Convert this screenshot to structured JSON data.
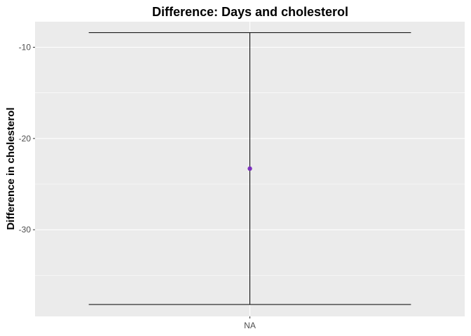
{
  "chart_data": {
    "type": "errorbar",
    "title": "Difference: Days and cholesterol",
    "xlabel": "",
    "ylabel": "Difference in cholesterol",
    "categories": [
      "NA"
    ],
    "points": [
      {
        "x": "NA",
        "y": -23.3,
        "ymin": -38.2,
        "ymax": -8.4
      }
    ],
    "ylim": [
      -39.5,
      -7.2
    ],
    "yticks": [
      -10,
      -20,
      -30
    ],
    "grid": true,
    "point_color": "#7B2FBE",
    "bar_color": "#000000",
    "panel_color": "#EBEBEB"
  }
}
